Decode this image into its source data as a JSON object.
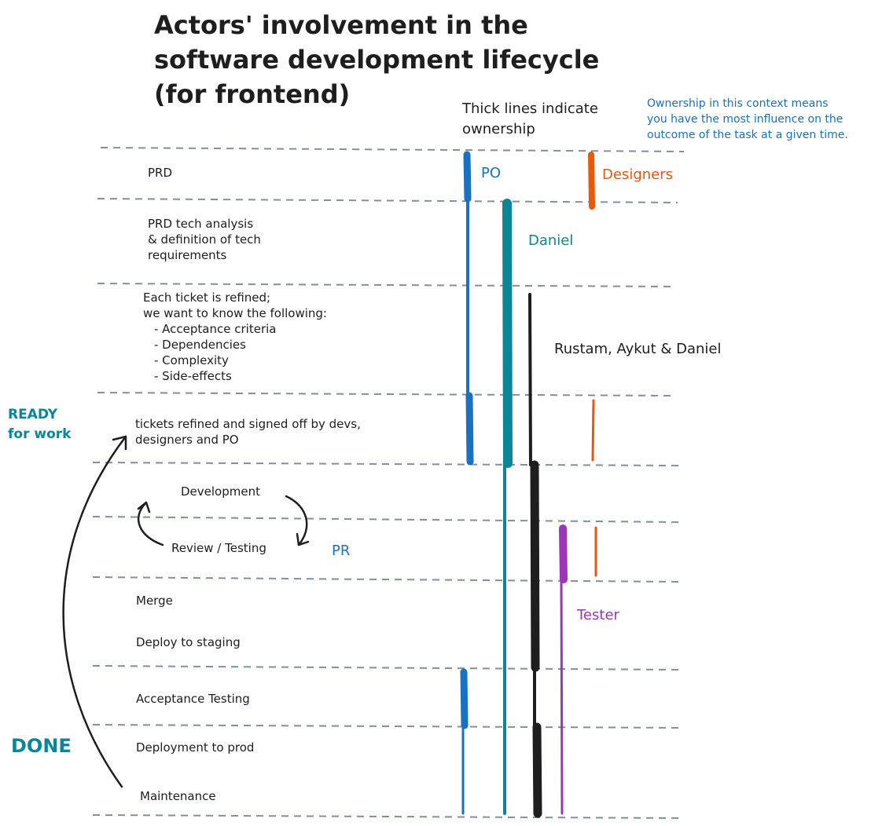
{
  "title": {
    "lines": [
      "Actors' involvement in the",
      "software development lifecycle",
      "(for frontend)"
    ]
  },
  "legend": {
    "thick_lines": [
      "Thick lines indicate",
      "ownership"
    ],
    "ownership_note": [
      "Ownership in this context means",
      "you have the most influence on the",
      "outcome of the task at a given time."
    ]
  },
  "stages": {
    "prd": "PRD",
    "tech_analysis": [
      "PRD tech analysis",
      "& definition of tech",
      "requirements"
    ],
    "refinement": [
      "Each ticket is refined;",
      "we want to know the following:",
      "- Acceptance criteria",
      "- Dependencies",
      "- Complexity",
      "- Side-effects"
    ],
    "signed_off": [
      "tickets refined and signed off by devs,",
      "designers and PO"
    ],
    "development": "Development",
    "review": "Review / Testing",
    "merge": "Merge",
    "deploy_staging": "Deploy to staging",
    "acceptance": "Acceptance Testing",
    "deploy_prod": "Deployment to prod",
    "maintenance": "Maintenance"
  },
  "markers": {
    "ready": [
      "READY",
      "for work"
    ],
    "done": "DONE",
    "pr": "PR"
  },
  "actors": {
    "po": "PO",
    "designers": "Designers",
    "daniel": "Daniel",
    "devs": "Rustam, Aykut & Daniel",
    "tester": "Tester"
  },
  "colors": {
    "po": "#1971c2",
    "designers": "#e8590c",
    "daniel": "#0c8599",
    "devs": "#1e1e1e",
    "tester": "#9c36b5",
    "divider": "#868e96",
    "text": "#1e1e1e"
  }
}
